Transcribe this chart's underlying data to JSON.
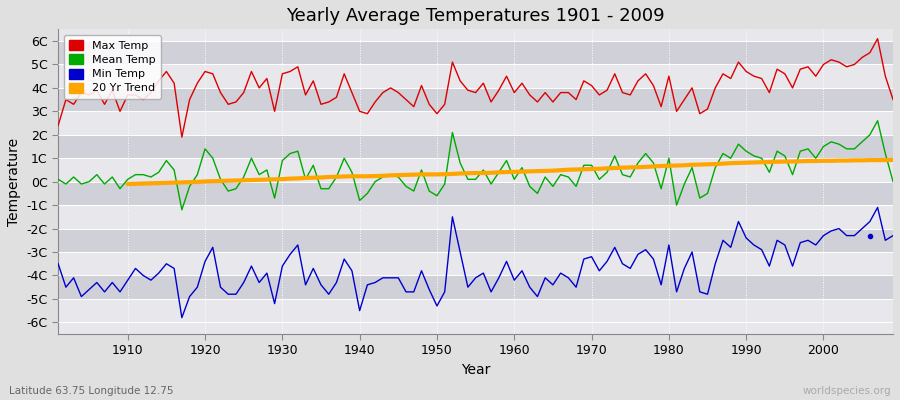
{
  "title": "Yearly Average Temperatures 1901 - 2009",
  "xlabel": "Year",
  "ylabel": "Temperature",
  "bottom_left_label": "Latitude 63.75 Longitude 12.75",
  "bottom_right_label": "worldspecies.org",
  "ylim": [
    -6.5,
    6.5
  ],
  "xlim": [
    1901,
    2009
  ],
  "yticks": [
    -6,
    -5,
    -4,
    -3,
    -2,
    -1,
    0,
    1,
    2,
    3,
    4,
    5,
    6
  ],
  "ytick_labels": [
    "-6C",
    "-5C",
    "-4C",
    "-3C",
    "-2C",
    "-1C",
    "0C",
    "1C",
    "2C",
    "3C",
    "4C",
    "5C",
    "6C"
  ],
  "xticks": [
    1910,
    1920,
    1930,
    1940,
    1950,
    1960,
    1970,
    1980,
    1990,
    2000
  ],
  "colors": {
    "max": "#dd0000",
    "mean": "#00aa00",
    "min": "#0000cc",
    "trend": "#ffa500",
    "fig_bg": "#e8e8e8",
    "plot_bg": "#e8e8ec",
    "band_light": "#d8d8de",
    "grid_color": "#ffffff"
  },
  "legend": {
    "labels": [
      "Max Temp",
      "Mean Temp",
      "Min Temp",
      "20 Yr Trend"
    ],
    "colors": [
      "#dd0000",
      "#00aa00",
      "#0000cc",
      "#ffa500"
    ]
  },
  "years": [
    1901,
    1902,
    1903,
    1904,
    1905,
    1906,
    1907,
    1908,
    1909,
    1910,
    1911,
    1912,
    1913,
    1914,
    1915,
    1916,
    1917,
    1918,
    1919,
    1920,
    1921,
    1922,
    1923,
    1924,
    1925,
    1926,
    1927,
    1928,
    1929,
    1930,
    1931,
    1932,
    1933,
    1934,
    1935,
    1936,
    1937,
    1938,
    1939,
    1940,
    1941,
    1942,
    1943,
    1944,
    1945,
    1946,
    1947,
    1948,
    1949,
    1950,
    1951,
    1952,
    1953,
    1954,
    1955,
    1956,
    1957,
    1958,
    1959,
    1960,
    1961,
    1962,
    1963,
    1964,
    1965,
    1966,
    1967,
    1968,
    1969,
    1970,
    1971,
    1972,
    1973,
    1974,
    1975,
    1976,
    1977,
    1978,
    1979,
    1980,
    1981,
    1982,
    1983,
    1984,
    1985,
    1986,
    1987,
    1988,
    1989,
    1990,
    1991,
    1992,
    1993,
    1994,
    1995,
    1996,
    1997,
    1998,
    1999,
    2000,
    2001,
    2002,
    2003,
    2004,
    2005,
    2006,
    2007,
    2008,
    2009
  ],
  "max_temp": [
    2.4,
    3.5,
    3.3,
    3.8,
    3.7,
    3.9,
    3.3,
    3.9,
    3.0,
    3.7,
    3.7,
    3.5,
    3.8,
    4.3,
    4.7,
    4.2,
    1.9,
    3.5,
    4.2,
    4.7,
    4.6,
    3.8,
    3.3,
    3.4,
    3.8,
    4.7,
    4.0,
    4.4,
    3.0,
    4.6,
    4.7,
    4.9,
    3.7,
    4.3,
    3.3,
    3.4,
    3.6,
    4.6,
    3.8,
    3.0,
    2.9,
    3.4,
    3.8,
    4.0,
    3.8,
    3.5,
    3.2,
    4.1,
    3.3,
    2.9,
    3.3,
    5.1,
    4.3,
    3.9,
    3.8,
    4.2,
    3.4,
    3.9,
    4.5,
    3.8,
    4.2,
    3.7,
    3.4,
    3.8,
    3.4,
    3.8,
    3.8,
    3.5,
    4.3,
    4.1,
    3.7,
    3.9,
    4.6,
    3.8,
    3.7,
    4.3,
    4.6,
    4.1,
    3.2,
    4.5,
    3.0,
    3.5,
    4.0,
    2.9,
    3.1,
    4.0,
    4.6,
    4.4,
    5.1,
    4.7,
    4.5,
    4.4,
    3.8,
    4.8,
    4.6,
    4.0,
    4.8,
    4.9,
    4.5,
    5.0,
    5.2,
    5.1,
    4.9,
    5.0,
    5.3,
    5.5,
    6.1,
    4.5,
    3.5
  ],
  "mean_temp": [
    0.1,
    -0.1,
    0.2,
    -0.1,
    0.0,
    0.3,
    -0.1,
    0.2,
    -0.3,
    0.1,
    0.3,
    0.3,
    0.2,
    0.4,
    0.9,
    0.5,
    -1.2,
    -0.2,
    0.3,
    1.4,
    1.0,
    0.1,
    -0.4,
    -0.3,
    0.2,
    1.0,
    0.3,
    0.5,
    -0.7,
    0.9,
    1.2,
    1.3,
    0.1,
    0.7,
    -0.3,
    -0.3,
    0.2,
    1.0,
    0.4,
    -0.8,
    -0.5,
    0.0,
    0.2,
    0.3,
    0.2,
    -0.2,
    -0.4,
    0.5,
    -0.4,
    -0.6,
    -0.1,
    2.1,
    0.8,
    0.1,
    0.1,
    0.5,
    -0.1,
    0.4,
    0.9,
    0.1,
    0.6,
    -0.2,
    -0.5,
    0.2,
    -0.2,
    0.3,
    0.2,
    -0.2,
    0.7,
    0.7,
    0.1,
    0.4,
    1.1,
    0.3,
    0.2,
    0.8,
    1.2,
    0.8,
    -0.3,
    1.0,
    -1.0,
    -0.1,
    0.6,
    -0.7,
    -0.5,
    0.6,
    1.2,
    1.0,
    1.6,
    1.3,
    1.1,
    1.0,
    0.4,
    1.3,
    1.1,
    0.3,
    1.3,
    1.4,
    1.0,
    1.5,
    1.7,
    1.6,
    1.4,
    1.4,
    1.7,
    2.0,
    2.6,
    1.2,
    0.0
  ],
  "min_temp": [
    -3.5,
    -4.5,
    -4.1,
    -4.9,
    -4.6,
    -4.3,
    -4.7,
    -4.3,
    -4.7,
    -4.2,
    -3.7,
    -4.0,
    -4.2,
    -3.9,
    -3.5,
    -3.7,
    -5.8,
    -4.9,
    -4.5,
    -3.4,
    -2.8,
    -4.5,
    -4.8,
    -4.8,
    -4.3,
    -3.6,
    -4.3,
    -3.9,
    -5.2,
    -3.6,
    -3.1,
    -2.7,
    -4.4,
    -3.7,
    -4.4,
    -4.8,
    -4.3,
    -3.3,
    -3.8,
    -5.5,
    -4.4,
    -4.3,
    -4.1,
    -4.1,
    -4.1,
    -4.7,
    -4.7,
    -3.8,
    -4.6,
    -5.3,
    -4.7,
    -1.5,
    -3.0,
    -4.5,
    -4.1,
    -3.9,
    -4.7,
    -4.1,
    -3.4,
    -4.2,
    -3.8,
    -4.5,
    -4.9,
    -4.1,
    -4.4,
    -3.9,
    -4.1,
    -4.5,
    -3.3,
    -3.2,
    -3.8,
    -3.4,
    -2.8,
    -3.5,
    -3.7,
    -3.1,
    -2.9,
    -3.3,
    -4.4,
    -2.7,
    -4.7,
    -3.7,
    -3.0,
    -4.7,
    -4.8,
    -3.5,
    -2.5,
    -2.8,
    -1.7,
    -2.4,
    -2.7,
    -2.9,
    -3.6,
    -2.5,
    -2.7,
    -3.6,
    -2.6,
    -2.5,
    -2.7,
    -2.3,
    -2.1,
    -2.0,
    -2.3,
    -2.3,
    -2.0,
    -1.7,
    -1.1,
    -2.5,
    -2.3
  ],
  "trend_years": [
    1910,
    1911,
    1912,
    1913,
    1914,
    1915,
    1916,
    1917,
    1918,
    1919,
    1920,
    1921,
    1922,
    1923,
    1924,
    1925,
    1926,
    1927,
    1928,
    1929,
    1930,
    1931,
    1932,
    1933,
    1934,
    1935,
    1936,
    1937,
    1938,
    1939,
    1940,
    1941,
    1942,
    1943,
    1944,
    1945,
    1946,
    1947,
    1948,
    1949,
    1950,
    1951,
    1952,
    1953,
    1954,
    1955,
    1956,
    1957,
    1958,
    1959,
    1960,
    1961,
    1962,
    1963,
    1964,
    1965,
    1966,
    1967,
    1968,
    1969,
    1970,
    1971,
    1972,
    1973,
    1974,
    1975,
    1976,
    1977,
    1978,
    1979,
    1980,
    1981,
    1982,
    1983,
    1984,
    1985,
    1986,
    1987,
    1988,
    1989,
    1990,
    1991,
    1992,
    1993,
    1994,
    1995,
    1996,
    1997,
    1998,
    1999,
    2000,
    2001,
    2002,
    2003,
    2004,
    2005,
    2006,
    2007,
    2008,
    2009
  ],
  "trend_values": [
    -0.1,
    -0.09,
    -0.08,
    -0.07,
    -0.06,
    -0.05,
    -0.04,
    -0.03,
    -0.02,
    -0.01,
    0.01,
    0.02,
    0.03,
    0.04,
    0.05,
    0.06,
    0.07,
    0.08,
    0.09,
    0.1,
    0.11,
    0.13,
    0.14,
    0.16,
    0.17,
    0.18,
    0.2,
    0.21,
    0.22,
    0.23,
    0.23,
    0.23,
    0.24,
    0.25,
    0.27,
    0.28,
    0.29,
    0.3,
    0.31,
    0.31,
    0.31,
    0.32,
    0.33,
    0.35,
    0.36,
    0.37,
    0.37,
    0.38,
    0.4,
    0.41,
    0.42,
    0.43,
    0.44,
    0.45,
    0.46,
    0.47,
    0.49,
    0.51,
    0.52,
    0.53,
    0.54,
    0.55,
    0.57,
    0.58,
    0.6,
    0.61,
    0.62,
    0.63,
    0.65,
    0.67,
    0.68,
    0.69,
    0.7,
    0.72,
    0.73,
    0.74,
    0.75,
    0.77,
    0.79,
    0.8,
    0.81,
    0.82,
    0.83,
    0.84,
    0.85,
    0.86,
    0.86,
    0.87,
    0.88,
    0.88,
    0.89,
    0.89,
    0.9,
    0.9,
    0.91,
    0.91,
    0.92,
    0.92,
    0.92,
    0.93
  ]
}
